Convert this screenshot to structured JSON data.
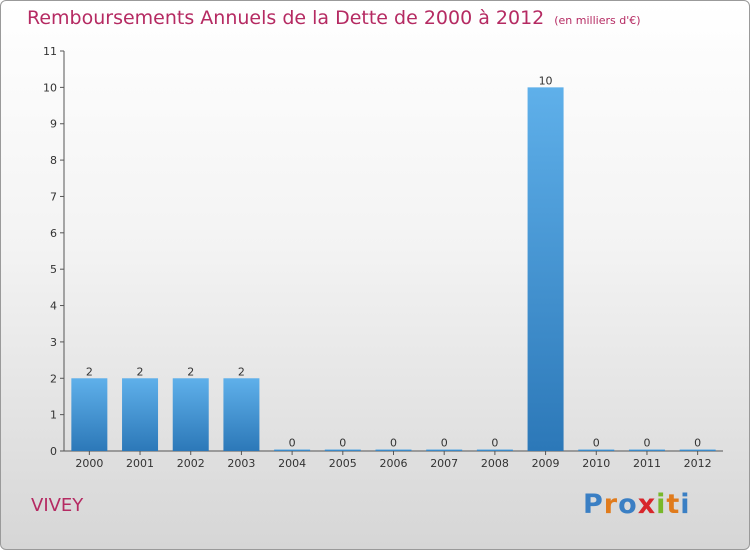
{
  "title": "Remboursements Annuels de la Dette de 2000 à 2012",
  "unit_label": "(en milliers d'€)",
  "commune": "VIVEY",
  "logo": {
    "text": "Proxiti",
    "letter_colors": [
      "#3a7fc4",
      "#e07b1c",
      "#3a7fc4",
      "#d8262b",
      "#78b82a",
      "#e07b1c",
      "#3a7fc4"
    ]
  },
  "colors": {
    "title": "#b52a62",
    "bar_top": "#5fb0ea",
    "bar_bottom": "#2c78b8",
    "axis": "#555555"
  },
  "chart_data": {
    "type": "bar",
    "title": "Remboursements Annuels de la Dette de 2000 à 2012",
    "xlabel": "",
    "ylabel": "",
    "categories": [
      "2000",
      "2001",
      "2002",
      "2003",
      "2004",
      "2005",
      "2006",
      "2007",
      "2008",
      "2009",
      "2010",
      "2011",
      "2012"
    ],
    "values": [
      2,
      2,
      2,
      2,
      0,
      0,
      0,
      0,
      0,
      10,
      0,
      0,
      0
    ],
    "data_labels": [
      "2",
      "2",
      "2",
      "2",
      "0",
      "0",
      "0",
      "0",
      "0",
      "10",
      "0",
      "0",
      "0"
    ],
    "ylim": [
      0,
      11
    ],
    "yticks": [
      0,
      1,
      2,
      3,
      4,
      5,
      6,
      7,
      8,
      9,
      10,
      11
    ],
    "grid": false,
    "legend": "none"
  }
}
